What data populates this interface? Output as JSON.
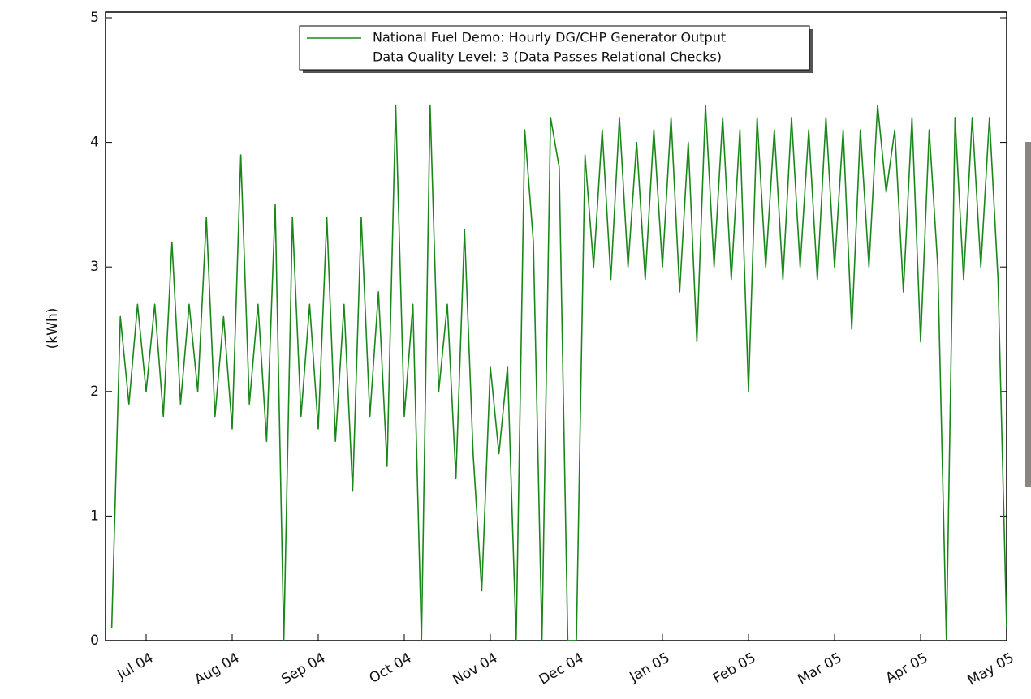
{
  "chart_data": {
    "type": "line",
    "y_label": "(kWh)",
    "categories": [
      null,
      null,
      null,
      null,
      "Jul 04",
      null,
      null,
      null,
      null,
      null,
      null,
      null,
      null,
      null,
      "Aug 04",
      null,
      null,
      null,
      null,
      null,
      null,
      null,
      null,
      null,
      "Sep 04",
      null,
      null,
      null,
      null,
      null,
      null,
      null,
      null,
      null,
      "Oct 04",
      null,
      null,
      null,
      null,
      null,
      null,
      null,
      null,
      null,
      "Nov 04",
      null,
      null,
      null,
      null,
      null,
      null,
      null,
      null,
      null,
      "Dec 04",
      null,
      null,
      null,
      null,
      null,
      null,
      null,
      null,
      null,
      "Jan 05",
      null,
      null,
      null,
      null,
      null,
      null,
      null,
      null,
      null,
      "Feb 05",
      null,
      null,
      null,
      null,
      null,
      null,
      null,
      null,
      null,
      "Mar 05",
      null,
      null,
      null,
      null,
      null,
      null,
      null,
      null,
      null,
      "Apr 05",
      null,
      null,
      null,
      null,
      null,
      null,
      null,
      null,
      null,
      "May 05"
    ],
    "series": [
      {
        "name": "National Fuel Demo: Hourly DG/CHP Generator Output",
        "color": "#1a871a",
        "values": [
          0.1,
          2.6,
          1.9,
          2.7,
          2.0,
          2.7,
          1.8,
          3.2,
          1.9,
          2.7,
          2.0,
          3.4,
          1.8,
          2.6,
          1.7,
          3.9,
          1.9,
          2.7,
          1.6,
          3.5,
          0.0,
          3.4,
          1.8,
          2.7,
          1.7,
          3.4,
          1.6,
          2.7,
          1.2,
          3.4,
          1.8,
          2.8,
          1.4,
          4.3,
          1.8,
          2.7,
          0.0,
          4.3,
          2.0,
          2.7,
          1.3,
          3.3,
          1.5,
          0.4,
          2.2,
          1.5,
          2.2,
          0.0,
          4.1,
          3.2,
          0.0,
          4.2,
          3.8,
          0.0,
          0.0,
          3.9,
          3.0,
          4.1,
          2.9,
          4.2,
          3.0,
          4.0,
          2.9,
          4.1,
          3.0,
          4.2,
          2.8,
          4.0,
          2.4,
          4.3,
          3.0,
          4.2,
          2.9,
          4.1,
          2.0,
          4.2,
          3.0,
          4.1,
          2.9,
          4.2,
          3.0,
          4.1,
          2.9,
          4.2,
          3.0,
          4.1,
          2.5,
          4.1,
          3.0,
          4.3,
          3.6,
          4.1,
          2.8,
          4.2,
          2.4,
          4.1,
          3.0,
          0.0,
          4.2,
          2.9,
          4.2,
          3.0,
          4.2,
          2.9,
          0.1
        ]
      }
    ],
    "legend_note": "Data Quality Level: 3 (Data Passes Relational Checks)",
    "legend": "upper center",
    "ylim": [
      0,
      5
    ],
    "yticks": [
      0,
      1,
      2,
      3,
      4,
      5
    ]
  }
}
